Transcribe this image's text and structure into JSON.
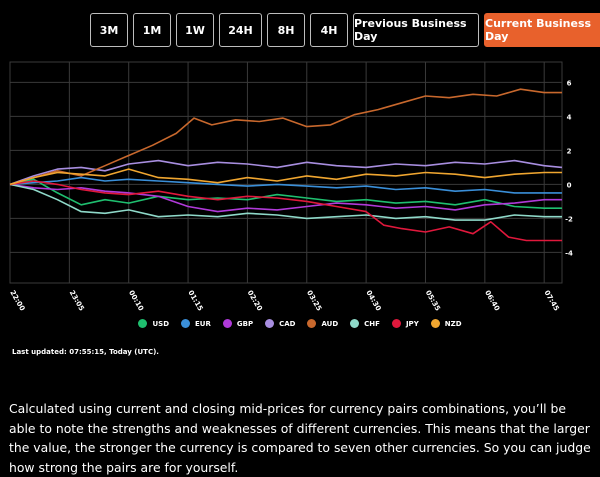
{
  "tabs": [
    {
      "label": "3M",
      "active": false
    },
    {
      "label": "1M",
      "active": false
    },
    {
      "label": "1W",
      "active": false
    },
    {
      "label": "24H",
      "active": false
    },
    {
      "label": "8H",
      "active": false
    },
    {
      "label": "4H",
      "active": false
    },
    {
      "label": "Previous Business Day",
      "active": false
    },
    {
      "label": "Current Business Day",
      "active": true
    }
  ],
  "colors": {
    "accent": "#e8612c",
    "background": "#000000",
    "grid": "#3a3a3a"
  },
  "chart_data": {
    "type": "line",
    "title": "",
    "xlabel": "",
    "ylabel": "",
    "x_ticks": [
      "22:00",
      "23:05",
      "00:10",
      "01:15",
      "02:20",
      "03:25",
      "04:30",
      "05:35",
      "06:40",
      "07:45"
    ],
    "x_range": [
      0,
      9.3
    ],
    "y_ticks": [
      6,
      4,
      2,
      0,
      -2,
      -4
    ],
    "ylim": [
      -5.8,
      7.2
    ],
    "grid": true,
    "legend_position": "bottom-center",
    "series": [
      {
        "name": "USD",
        "color": "#1fbf6f",
        "points": [
          [
            0,
            0
          ],
          [
            0.4,
            0.3
          ],
          [
            0.8,
            -0.5
          ],
          [
            1.2,
            -1.2
          ],
          [
            1.6,
            -0.9
          ],
          [
            2,
            -1.1
          ],
          [
            2.5,
            -0.7
          ],
          [
            3,
            -0.9
          ],
          [
            3.5,
            -0.8
          ],
          [
            4,
            -0.9
          ],
          [
            4.5,
            -0.6
          ],
          [
            5,
            -0.8
          ],
          [
            5.5,
            -1.0
          ],
          [
            6,
            -0.9
          ],
          [
            6.5,
            -1.1
          ],
          [
            7,
            -1.0
          ],
          [
            7.5,
            -1.2
          ],
          [
            8,
            -0.9
          ],
          [
            8.5,
            -1.3
          ],
          [
            9,
            -1.4
          ],
          [
            9.3,
            -1.4
          ]
        ]
      },
      {
        "name": "EUR",
        "color": "#3a8fd9",
        "points": [
          [
            0,
            0
          ],
          [
            0.4,
            0.1
          ],
          [
            0.8,
            0.2
          ],
          [
            1.2,
            0.4
          ],
          [
            1.6,
            0.2
          ],
          [
            2,
            0.3
          ],
          [
            2.5,
            0.2
          ],
          [
            3,
            0.1
          ],
          [
            3.5,
            0.0
          ],
          [
            4,
            -0.1
          ],
          [
            4.5,
            0.0
          ],
          [
            5,
            -0.1
          ],
          [
            5.5,
            -0.2
          ],
          [
            6,
            -0.1
          ],
          [
            6.5,
            -0.3
          ],
          [
            7,
            -0.2
          ],
          [
            7.5,
            -0.4
          ],
          [
            8,
            -0.3
          ],
          [
            8.5,
            -0.5
          ],
          [
            9,
            -0.5
          ],
          [
            9.3,
            -0.5
          ]
        ]
      },
      {
        "name": "GBP",
        "color": "#b03ad9",
        "points": [
          [
            0,
            0
          ],
          [
            0.4,
            -0.2
          ],
          [
            0.8,
            -0.3
          ],
          [
            1.2,
            -0.2
          ],
          [
            1.6,
            -0.4
          ],
          [
            2,
            -0.5
          ],
          [
            2.5,
            -0.7
          ],
          [
            3,
            -1.3
          ],
          [
            3.5,
            -1.6
          ],
          [
            4,
            -1.4
          ],
          [
            4.5,
            -1.5
          ],
          [
            5,
            -1.3
          ],
          [
            5.5,
            -1.1
          ],
          [
            6,
            -1.2
          ],
          [
            6.5,
            -1.4
          ],
          [
            7,
            -1.3
          ],
          [
            7.5,
            -1.5
          ],
          [
            8,
            -1.2
          ],
          [
            8.5,
            -1.1
          ],
          [
            9,
            -0.9
          ],
          [
            9.3,
            -0.9
          ]
        ]
      },
      {
        "name": "CAD",
        "color": "#a88ee0",
        "points": [
          [
            0,
            0
          ],
          [
            0.4,
            0.5
          ],
          [
            0.8,
            0.9
          ],
          [
            1.2,
            1.0
          ],
          [
            1.6,
            0.8
          ],
          [
            2,
            1.2
          ],
          [
            2.5,
            1.4
          ],
          [
            3,
            1.1
          ],
          [
            3.5,
            1.3
          ],
          [
            4,
            1.2
          ],
          [
            4.5,
            1.0
          ],
          [
            5,
            1.3
          ],
          [
            5.5,
            1.1
          ],
          [
            6,
            1.0
          ],
          [
            6.5,
            1.2
          ],
          [
            7,
            1.1
          ],
          [
            7.5,
            1.3
          ],
          [
            8,
            1.2
          ],
          [
            8.5,
            1.4
          ],
          [
            9,
            1.1
          ],
          [
            9.3,
            1.0
          ]
        ]
      },
      {
        "name": "AUD",
        "color": "#c8682d",
        "points": [
          [
            0,
            0
          ],
          [
            0.4,
            0.4
          ],
          [
            0.8,
            0.8
          ],
          [
            1.2,
            0.5
          ],
          [
            1.6,
            1.1
          ],
          [
            2,
            1.7
          ],
          [
            2.4,
            2.3
          ],
          [
            2.8,
            3.0
          ],
          [
            3.1,
            3.9
          ],
          [
            3.4,
            3.5
          ],
          [
            3.8,
            3.8
          ],
          [
            4.2,
            3.7
          ],
          [
            4.6,
            3.9
          ],
          [
            5,
            3.4
          ],
          [
            5.4,
            3.5
          ],
          [
            5.8,
            4.1
          ],
          [
            6.2,
            4.4
          ],
          [
            6.6,
            4.8
          ],
          [
            7,
            5.2
          ],
          [
            7.4,
            5.1
          ],
          [
            7.8,
            5.3
          ],
          [
            8.2,
            5.2
          ],
          [
            8.6,
            5.6
          ],
          [
            9,
            5.4
          ],
          [
            9.3,
            5.4
          ]
        ]
      },
      {
        "name": "CHF",
        "color": "#8fd9c9",
        "points": [
          [
            0,
            0
          ],
          [
            0.4,
            -0.3
          ],
          [
            0.8,
            -0.9
          ],
          [
            1.2,
            -1.6
          ],
          [
            1.6,
            -1.7
          ],
          [
            2,
            -1.5
          ],
          [
            2.5,
            -1.9
          ],
          [
            3,
            -1.8
          ],
          [
            3.5,
            -1.9
          ],
          [
            4,
            -1.7
          ],
          [
            4.5,
            -1.8
          ],
          [
            5,
            -2.0
          ],
          [
            5.5,
            -1.9
          ],
          [
            6,
            -1.8
          ],
          [
            6.5,
            -2.0
          ],
          [
            7,
            -1.9
          ],
          [
            7.5,
            -2.1
          ],
          [
            8,
            -2.1
          ],
          [
            8.5,
            -1.8
          ],
          [
            9,
            -1.9
          ],
          [
            9.3,
            -1.9
          ]
        ]
      },
      {
        "name": "JPY",
        "color": "#e0183c",
        "points": [
          [
            0,
            0
          ],
          [
            0.4,
            0.2
          ],
          [
            0.8,
            0.0
          ],
          [
            1.2,
            -0.3
          ],
          [
            1.6,
            -0.5
          ],
          [
            2,
            -0.6
          ],
          [
            2.5,
            -0.4
          ],
          [
            3,
            -0.7
          ],
          [
            3.5,
            -0.9
          ],
          [
            4,
            -0.7
          ],
          [
            4.5,
            -0.8
          ],
          [
            5,
            -1.0
          ],
          [
            5.5,
            -1.3
          ],
          [
            6,
            -1.6
          ],
          [
            6.3,
            -2.4
          ],
          [
            6.6,
            -2.6
          ],
          [
            7,
            -2.8
          ],
          [
            7.4,
            -2.5
          ],
          [
            7.8,
            -2.9
          ],
          [
            8.1,
            -2.2
          ],
          [
            8.4,
            -3.1
          ],
          [
            8.7,
            -3.3
          ],
          [
            9,
            -3.3
          ],
          [
            9.3,
            -3.3
          ]
        ]
      },
      {
        "name": "NZD",
        "color": "#f0a630",
        "points": [
          [
            0,
            0
          ],
          [
            0.4,
            0.4
          ],
          [
            0.8,
            0.7
          ],
          [
            1.2,
            0.6
          ],
          [
            1.6,
            0.5
          ],
          [
            2,
            0.9
          ],
          [
            2.5,
            0.4
          ],
          [
            3,
            0.3
          ],
          [
            3.5,
            0.1
          ],
          [
            4,
            0.4
          ],
          [
            4.5,
            0.2
          ],
          [
            5,
            0.5
          ],
          [
            5.5,
            0.3
          ],
          [
            6,
            0.6
          ],
          [
            6.5,
            0.5
          ],
          [
            7,
            0.7
          ],
          [
            7.5,
            0.6
          ],
          [
            8,
            0.4
          ],
          [
            8.5,
            0.6
          ],
          [
            9,
            0.7
          ],
          [
            9.3,
            0.7
          ]
        ]
      }
    ]
  },
  "last_updated": "Last updated: 07:55:15, Today (UTC).",
  "description": "Calculated using current and closing mid-prices for currency pairs combinations, you’ll be able to note the strengths and weaknesses of different currencies. This means that the larger the value, the stronger the currency is compared to seven other currencies. So you can judge how strong the pairs are for yourself."
}
